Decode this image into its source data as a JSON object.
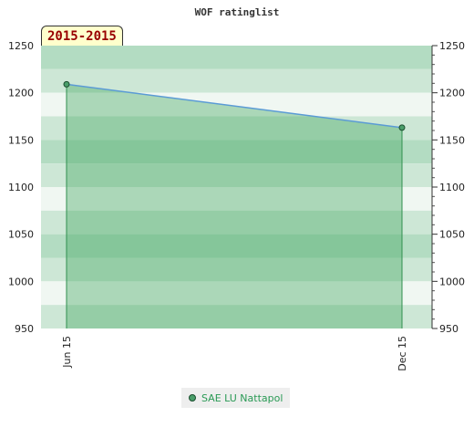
{
  "chart_data": {
    "type": "area",
    "title": "WOF ratinglist",
    "period_label": "2015-2015",
    "categories": [
      "Jun 15",
      "Dec 15"
    ],
    "series": [
      {
        "name": "SAE LU Nattapol",
        "values": [
          1209,
          1163
        ],
        "color": "#5b9bd5"
      }
    ],
    "ylim": [
      950,
      1250
    ],
    "y_ticks": [
      950,
      1000,
      1050,
      1100,
      1150,
      1200,
      1250
    ],
    "y_tick_labels": [
      "950",
      "1000",
      "1050",
      "1100",
      "1150",
      "1200",
      "1250"
    ],
    "grid": true,
    "legend_position": "bottom",
    "colors": {
      "fill": "#3aa35a",
      "line": "#5b9bd5",
      "marker": "#4a9e6a",
      "band_light": "#f0f7f2",
      "band_mid": "#cde7d6",
      "band_dark": "#b3dcc2"
    }
  }
}
